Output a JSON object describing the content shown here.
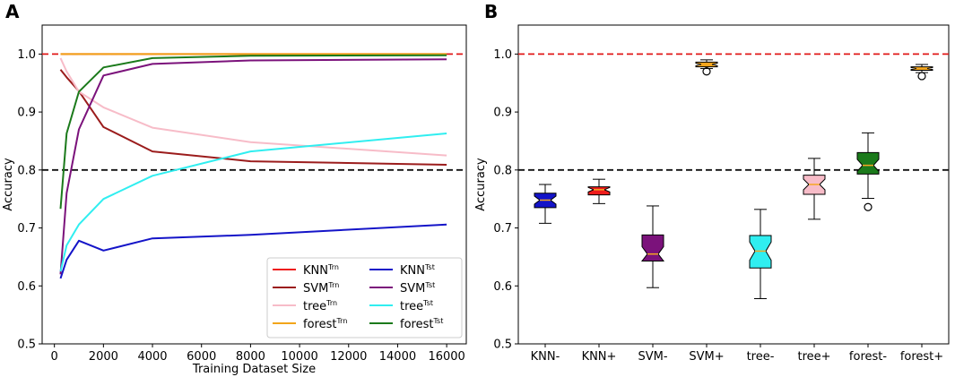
{
  "panel_a_letter": "A",
  "panel_b_letter": "B",
  "colors": {
    "KNN_trn": "#ee1c1c",
    "KNN_tst": "#1414c8",
    "SVM_trn": "#9b1c1c",
    "SVM_tst": "#7b127b",
    "tree_trn": "#f7bcc8",
    "tree_tst": "#30eef0",
    "forest_trn": "#f2a51a",
    "forest_tst": "#1b7a1b",
    "ref_red": "#e01818",
    "ref_black": "#111111"
  },
  "chart_data": [
    {
      "type": "line",
      "title": "",
      "xlabel": "Training Dataset Size",
      "ylabel": "Accuracy",
      "xlim": [
        -500,
        16800
      ],
      "ylim": [
        0.5,
        1.05
      ],
      "xticks": [
        "0",
        "2000",
        "4000",
        "6000",
        "8000",
        "10000",
        "12000",
        "14000",
        "16000"
      ],
      "xtick_values": [
        0,
        2000,
        4000,
        6000,
        8000,
        10000,
        12000,
        14000,
        16000
      ],
      "yticks": [
        "0.5",
        "0.6",
        "0.7",
        "0.8",
        "0.9",
        "1.0"
      ],
      "ytick_values": [
        0.5,
        0.6,
        0.7,
        0.8,
        0.9,
        1.0
      ],
      "reference_lines": [
        {
          "y": 1.0,
          "color": "ref_red",
          "style": "dashed"
        },
        {
          "y": 0.8,
          "color": "ref_black",
          "style": "dashed"
        }
      ],
      "x": [
        250,
        500,
        1000,
        2000,
        4000,
        8000,
        16000
      ],
      "series": [
        {
          "id": "KNN_trn",
          "name": "KNN",
          "sup": "Trn",
          "color": "KNN_trn",
          "values": [
            1.0,
            1.0,
            1.0,
            1.0,
            1.0,
            1.0,
            1.0
          ]
        },
        {
          "id": "forest_trn",
          "name": "forest",
          "sup": "Trn",
          "color": "forest_trn",
          "values": [
            1.0,
            1.0,
            1.0,
            1.0,
            1.0,
            1.0,
            1.0
          ]
        },
        {
          "id": "SVM_trn",
          "name": "SVM",
          "sup": "Trn",
          "color": "SVM_trn",
          "values": [
            0.973,
            0.96,
            0.936,
            0.874,
            0.832,
            0.815,
            0.809
          ]
        },
        {
          "id": "tree_trn",
          "name": "tree",
          "sup": "Trn",
          "color": "tree_trn",
          "values": [
            0.993,
            0.97,
            0.935,
            0.908,
            0.873,
            0.848,
            0.825
          ]
        },
        {
          "id": "KNN_tst",
          "name": "KNN",
          "sup": "Tst",
          "color": "KNN_tst",
          "values": [
            0.613,
            0.645,
            0.678,
            0.661,
            0.682,
            0.688,
            0.706
          ]
        },
        {
          "id": "SVM_tst",
          "name": "SVM",
          "sup": "Tst",
          "color": "SVM_tst",
          "values": [
            0.62,
            0.76,
            0.87,
            0.963,
            0.983,
            0.989,
            0.991
          ]
        },
        {
          "id": "tree_tst",
          "name": "tree",
          "sup": "Tst",
          "color": "tree_tst",
          "values": [
            0.625,
            0.67,
            0.706,
            0.75,
            0.79,
            0.832,
            0.863
          ]
        },
        {
          "id": "forest_tst",
          "name": "forest",
          "sup": "Tst",
          "color": "forest_tst",
          "values": [
            0.733,
            0.863,
            0.935,
            0.977,
            0.993,
            0.997,
            0.998
          ]
        }
      ],
      "legend": {
        "position": "lower-right",
        "columns": [
          [
            "KNN_trn",
            "SVM_trn",
            "tree_trn",
            "forest_trn"
          ],
          [
            "KNN_tst",
            "SVM_tst",
            "tree_tst",
            "forest_tst"
          ]
        ]
      }
    },
    {
      "type": "box",
      "title": "",
      "xlabel": "",
      "ylabel": "Accuracy",
      "ylim": [
        0.5,
        1.05
      ],
      "yticks": [
        "0.5",
        "0.6",
        "0.7",
        "0.8",
        "0.9",
        "1.0"
      ],
      "ytick_values": [
        0.5,
        0.6,
        0.7,
        0.8,
        0.9,
        1.0
      ],
      "reference_lines": [
        {
          "y": 1.0,
          "color": "ref_red",
          "style": "dashed"
        },
        {
          "y": 0.8,
          "color": "ref_black",
          "style": "dashed"
        }
      ],
      "boxes": [
        {
          "label": "KNN-",
          "color": "KNN_tst",
          "whisker_low": 0.708,
          "q1": 0.735,
          "median": 0.748,
          "q3": 0.76,
          "whisker_high": 0.775,
          "outliers": []
        },
        {
          "label": "KNN+",
          "color": "KNN_trn",
          "whisker_low": 0.742,
          "q1": 0.757,
          "median": 0.766,
          "q3": 0.771,
          "whisker_high": 0.784,
          "outliers": []
        },
        {
          "label": "SVM-",
          "color": "SVM_tst",
          "whisker_low": 0.597,
          "q1": 0.643,
          "median": 0.655,
          "q3": 0.688,
          "whisker_high": 0.738,
          "outliers": []
        },
        {
          "label": "SVM+",
          "color": "forest_trn",
          "whisker_low": 0.975,
          "q1": 0.978,
          "median": 0.982,
          "q3": 0.986,
          "whisker_high": 0.99,
          "outliers": [
            0.97
          ]
        },
        {
          "label": "tree-",
          "color": "tree_tst",
          "whisker_low": 0.578,
          "q1": 0.631,
          "median": 0.66,
          "q3": 0.687,
          "whisker_high": 0.732,
          "outliers": []
        },
        {
          "label": "tree+",
          "color": "tree_trn",
          "whisker_low": 0.715,
          "q1": 0.758,
          "median": 0.775,
          "q3": 0.791,
          "whisker_high": 0.82,
          "outliers": []
        },
        {
          "label": "forest-",
          "color": "forest_tst",
          "whisker_low": 0.751,
          "q1": 0.793,
          "median": 0.808,
          "q3": 0.83,
          "whisker_high": 0.864,
          "outliers": [
            0.736
          ]
        },
        {
          "label": "forest+",
          "color": "forest_trn",
          "whisker_low": 0.968,
          "q1": 0.972,
          "median": 0.975,
          "q3": 0.978,
          "whisker_high": 0.982,
          "outliers": [
            0.962
          ]
        }
      ]
    }
  ]
}
